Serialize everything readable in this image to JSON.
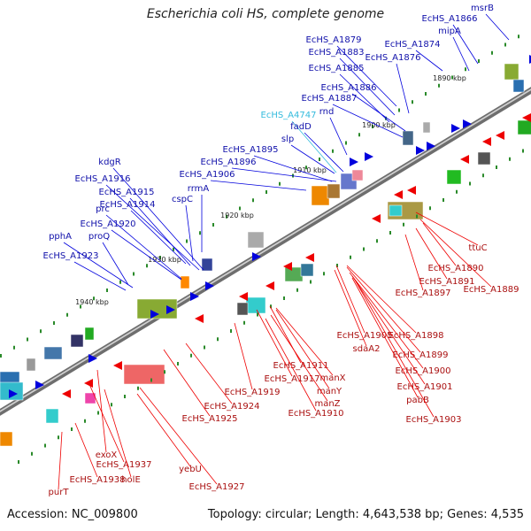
{
  "title": "Escherichia coli HS, complete genome",
  "footer": {
    "accession": "Accession: NC_009800",
    "topology": "Topology: circular; Length: 4,643,538 bp; Genes: 4,535"
  },
  "colors": {
    "forward": "#0000dd",
    "reverse": "#ee0000",
    "backbone": "#888888",
    "highlight": "#33bbdd",
    "tick": "#2a8a2a"
  },
  "ticks": [
    "1890 kbp",
    "1900 kbp",
    "1910 kbp",
    "1920 kbp",
    "1930 kbp",
    "1940 kbp"
  ],
  "top_labels": [
    "msrB",
    "EcHS_A1866",
    "mipA",
    "EcHS_A1874",
    "EcHS_A1879",
    "EcHS_A1876",
    "EcHS_A1883",
    "EcHS_A1885",
    "EcHS_A1886",
    "EcHS_A1887",
    "rnd",
    "EcHS_A4747",
    "fadD",
    "slp",
    "EcHS_A1895",
    "EcHS_A1896",
    "EcHS_A1906",
    "kdgR",
    "EcHS_A1916",
    "EcHS_A1915",
    "rrmA",
    "EcHS_A1914",
    "cspC",
    "prc",
    "EcHS_A1920",
    "proQ",
    "pphA",
    "EcHS_A1923"
  ],
  "bottom_labels": [
    "ttuC",
    "EcHS_A1890",
    "EcHS_A1891",
    "EcHS_A1889",
    "EcHS_A1897",
    "EcHS_A1898",
    "EcHS_A1905",
    "EcHS_A1899",
    "sdaA2",
    "EcHS_A1900",
    "EcHS_A1911",
    "manX",
    "EcHS_A1901",
    "EcHS_A1917",
    "manY",
    "pabB",
    "EcHS_A1919",
    "manZ",
    "EcHS_A1910",
    "EcHS_A1903",
    "EcHS_A1924",
    "EcHS_A1925",
    "exoX",
    "EcHS_A1937",
    "EcHS_A1938",
    "holE",
    "yebU",
    "EcHS_A1927",
    "purT"
  ]
}
